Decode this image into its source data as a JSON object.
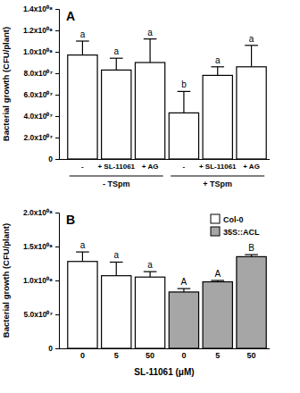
{
  "chart_data": [
    {
      "type": "bar",
      "title": "A",
      "y_label": "Bacterial growth (CFU/plant)",
      "categories": [
        "-",
        "+ SL-11061",
        "+ AG",
        "-",
        "+ SL-11061",
        "+ AG"
      ],
      "values": [
        97000000,
        83000000,
        90000000,
        43000000,
        78000000,
        86000000
      ],
      "errors": [
        13000000,
        11000000,
        22000000,
        20000000,
        8000000,
        20000000
      ],
      "annotations": [
        "a",
        "a",
        "a",
        "b",
        "a",
        "a"
      ],
      "groups": [
        {
          "name": "- TSpm",
          "size": 3
        },
        {
          "name": "+ TSpm",
          "size": 3
        }
      ],
      "color": "#ffffff",
      "ylim": [
        0,
        140000000
      ],
      "yticks": [
        0,
        {
          "value": 20000000,
          "label": "2.0x10⁰⁷"
        },
        {
          "value": 40000000,
          "label": "4.0x10⁰⁷"
        },
        {
          "value": 60000000,
          "label": "6.0x10⁰⁷"
        },
        {
          "value": 80000000,
          "label": "8.0x10⁰⁷"
        },
        {
          "value": 100000000,
          "label": "1.0x10⁰⁸"
        },
        {
          "value": 120000000,
          "label": "1.2x10⁰⁸"
        },
        {
          "value": 140000000,
          "label": "1.4x10⁰⁸"
        }
      ],
      "grid": false
    },
    {
      "type": "bar",
      "title": "B",
      "y_label": "Bacterial growth (CFU/plant)",
      "x_label": "SL-11061 (μM)",
      "categories": [
        "0",
        "5",
        "50",
        "0",
        "5",
        "50"
      ],
      "series": [
        {
          "name": "Col-0",
          "color": "#ffffff",
          "values": [
            128000000,
            107000000,
            105000000,
            null,
            null,
            null
          ],
          "errors": [
            14000000,
            20000000,
            8000000,
            null,
            null,
            null
          ]
        },
        {
          "name": "35S::ACL",
          "color": "#a6a6a6",
          "values": [
            null,
            null,
            null,
            83000000,
            98000000,
            135000000
          ],
          "errors": [
            null,
            null,
            null,
            5000000,
            2000000,
            3000000
          ]
        }
      ],
      "annotations": [
        "a",
        "a",
        "a",
        "A",
        "A",
        "B"
      ],
      "legend": "top-right",
      "ylim": [
        0,
        200000000
      ],
      "yticks": [
        0,
        {
          "value": 50000000,
          "label": "5.0x10⁰⁷"
        },
        {
          "value": 100000000,
          "label": "1.0x10⁰⁸"
        },
        {
          "value": 150000000,
          "label": "1.5x10⁰⁸"
        },
        {
          "value": 200000000,
          "label": "2.0x10⁰⁸"
        }
      ],
      "grid": false
    }
  ]
}
